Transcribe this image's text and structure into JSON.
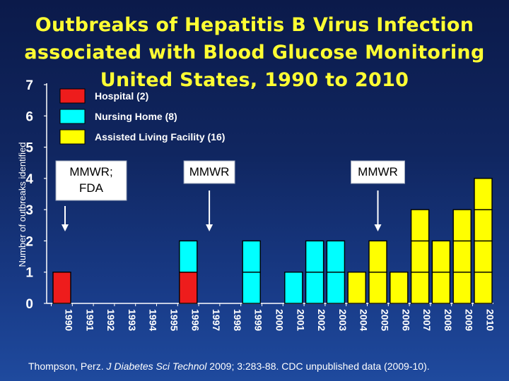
{
  "slide": {
    "title_lines": [
      "Outbreaks of Hepatitis B Virus Infection",
      "associated with Blood Glucose Monitoring",
      "United States, 1990 to 2010"
    ],
    "citation": {
      "authors": "Thompson, Perz. ",
      "journal": "J Diabetes Sci Technol",
      "details": " 2009; 3:283-88.  CDC unpublished data (2009-10)."
    }
  },
  "chart_data": {
    "type": "bar",
    "stacked": true,
    "title": "Outbreaks of Hepatitis B Virus Infection associated with Blood Glucose Monitoring United States, 1990 to 2010",
    "xlabel": "",
    "ylabel": "Number of outbreaks identified",
    "ylim": [
      0,
      7
    ],
    "yticks": [
      0,
      1,
      2,
      3,
      4,
      5,
      6,
      7
    ],
    "grid": false,
    "legend_position": "top-left",
    "categories": [
      "1990",
      "1991",
      "1992",
      "1993",
      "1994",
      "1995",
      "1996",
      "1997",
      "1998",
      "1999",
      "2000",
      "2001",
      "2002",
      "2003",
      "2004",
      "2005",
      "2006",
      "2007",
      "2008",
      "2009",
      "2010"
    ],
    "series": [
      {
        "name": "Hospital (2)",
        "color": "#ee1c1c",
        "values": [
          1,
          0,
          0,
          0,
          0,
          0,
          1,
          0,
          0,
          0,
          0,
          0,
          0,
          0,
          0,
          0,
          0,
          0,
          0,
          0,
          0
        ]
      },
      {
        "name": "Nursing Home (8)",
        "color": "#00ffff",
        "values": [
          0,
          0,
          0,
          0,
          0,
          0,
          1,
          0,
          0,
          2,
          0,
          1,
          2,
          2,
          0,
          0,
          0,
          0,
          0,
          0,
          0
        ]
      },
      {
        "name": "Assisted Living Facility (16)",
        "color": "#ffff00",
        "values": [
          0,
          0,
          0,
          0,
          0,
          0,
          0,
          0,
          0,
          0,
          0,
          0,
          0,
          0,
          1,
          2,
          1,
          3,
          2,
          3,
          4
        ]
      }
    ],
    "annotations": [
      {
        "lines": [
          "MMWR;",
          "FDA"
        ],
        "year": "1990"
      },
      {
        "lines": [
          "MMWR"
        ],
        "year": "1997"
      },
      {
        "lines": [
          "MMWR"
        ],
        "year": "2005"
      }
    ]
  }
}
